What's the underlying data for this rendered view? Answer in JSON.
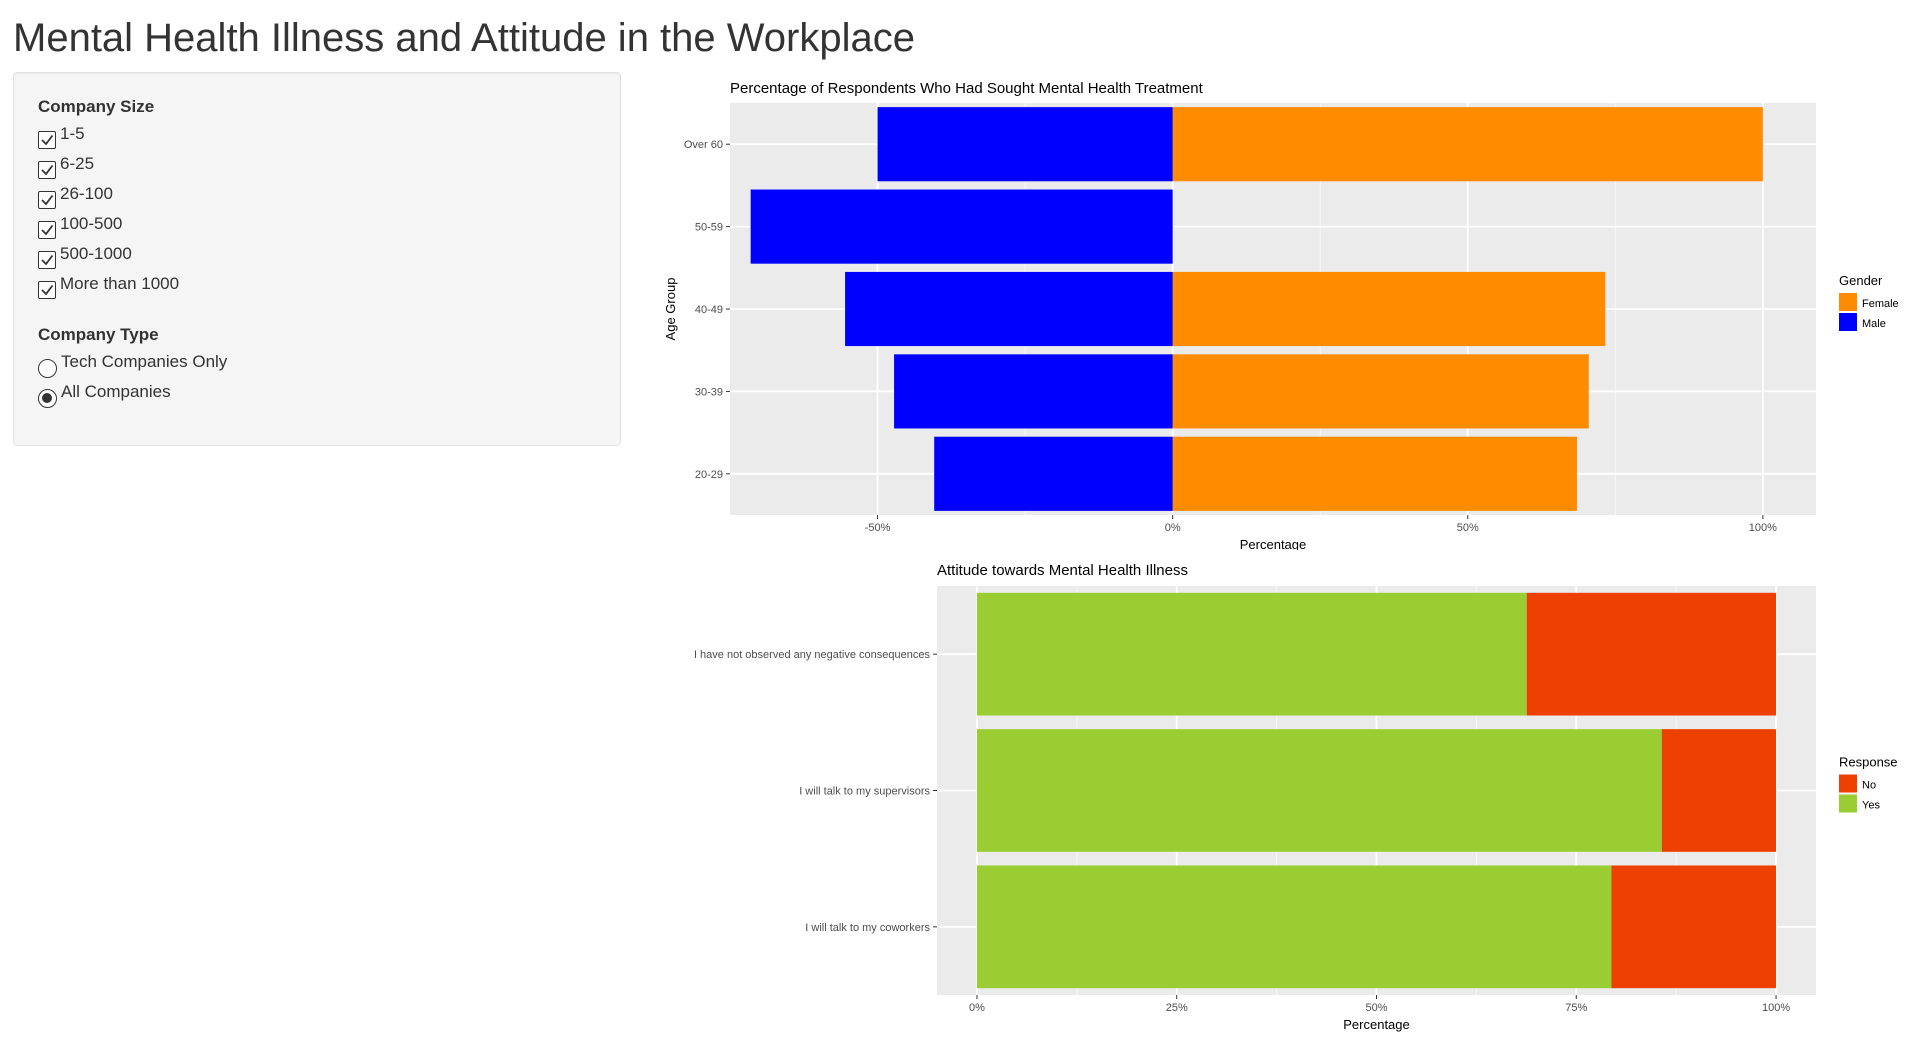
{
  "app": {
    "title": "Mental Health Illness and Attitude in the Workplace"
  },
  "sidebar": {
    "company_size": {
      "label": "Company Size",
      "options": [
        {
          "label": "1-5",
          "checked": true
        },
        {
          "label": "6-25",
          "checked": true
        },
        {
          "label": "26-100",
          "checked": true
        },
        {
          "label": "100-500",
          "checked": true
        },
        {
          "label": "500-1000",
          "checked": true
        },
        {
          "label": "More than 1000",
          "checked": true
        }
      ]
    },
    "company_type": {
      "label": "Company Type",
      "options": [
        {
          "label": "Tech Companies Only",
          "selected": false
        },
        {
          "label": "All Companies",
          "selected": true
        }
      ]
    }
  },
  "chart_data": [
    {
      "type": "bar",
      "orientation": "horizontal",
      "title": "Percentage of Respondents Who Had Sought Mental Health Treatment",
      "xlabel": "Percentage",
      "ylabel": "Age Group",
      "categories": [
        "20-29",
        "30-39",
        "40-49",
        "50-59",
        "Over 60"
      ],
      "series": [
        {
          "name": "Female",
          "color": "#FF8C00",
          "values": [
            68.5,
            70.5,
            73.3,
            null,
            100
          ]
        },
        {
          "name": "Male",
          "color": "#0000FF",
          "values": [
            -40.4,
            -47.2,
            -55.5,
            -71.5,
            -50
          ]
        }
      ],
      "xlim": [
        -75,
        109
      ],
      "xticks": [
        -50,
        0,
        50,
        100
      ],
      "xtick_labels": [
        "-50%",
        "0%",
        "50%",
        "100%"
      ],
      "legend": {
        "title": "Gender",
        "position": "right"
      },
      "grid": true
    },
    {
      "type": "bar",
      "orientation": "horizontal",
      "stacked": true,
      "title": "Attitude towards Mental Health Illness",
      "xlabel": "Percentage",
      "ylabel": "",
      "categories": [
        "I will talk to my coworkers",
        "I will talk to my supervisors",
        "I have not observed any negative consequences"
      ],
      "series": [
        {
          "name": "Yes",
          "color": "#9ACD32",
          "values": [
            79.4,
            85.7,
            68.8
          ]
        },
        {
          "name": "No",
          "color": "#EE4000",
          "values": [
            20.6,
            14.3,
            31.2
          ]
        }
      ],
      "xlim": [
        -5,
        105
      ],
      "xticks": [
        0,
        25,
        50,
        75,
        100
      ],
      "xtick_labels": [
        "0%",
        "25%",
        "50%",
        "75%",
        "100%"
      ],
      "legend": {
        "title": "Response",
        "position": "right",
        "order": [
          "No",
          "Yes"
        ]
      },
      "grid": true
    }
  ]
}
